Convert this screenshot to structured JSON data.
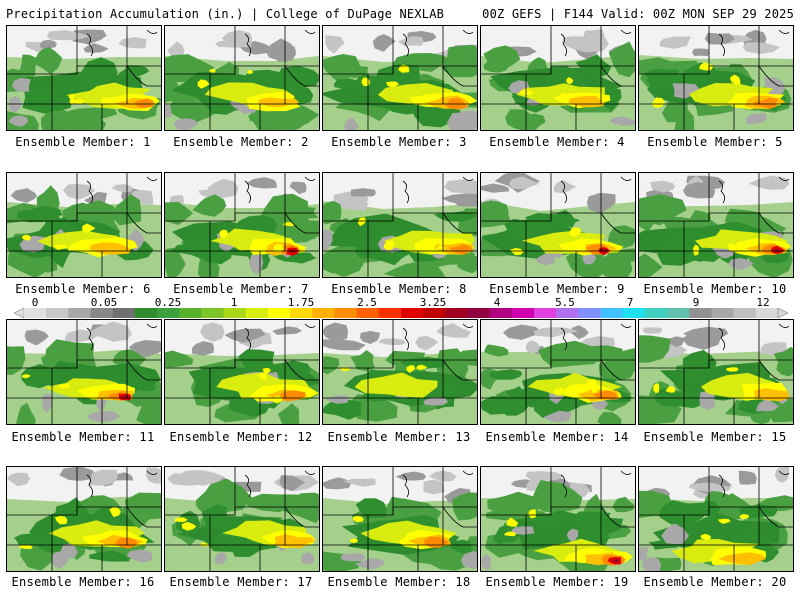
{
  "header": {
    "title": "Precipitation Accumulation (in.) | College of DuPage NEXLAB",
    "valid": "00Z GEFS | F144 Valid: 00Z MON SEP 29 2025"
  },
  "panels": [
    {
      "label": "Ensemble Member: 1",
      "intensity": 3
    },
    {
      "label": "Ensemble Member: 2",
      "intensity": 2
    },
    {
      "label": "Ensemble Member: 3",
      "intensity": 3
    },
    {
      "label": "Ensemble Member: 4",
      "intensity": 2
    },
    {
      "label": "Ensemble Member: 5",
      "intensity": 3
    },
    {
      "label": "Ensemble Member: 6",
      "intensity": 2
    },
    {
      "label": "Ensemble Member: 7",
      "intensity": 4
    },
    {
      "label": "Ensemble Member: 8",
      "intensity": 3
    },
    {
      "label": "Ensemble Member: 9",
      "intensity": 4
    },
    {
      "label": "Ensemble Member: 10",
      "intensity": 4
    },
    {
      "label": "Ensemble Member: 11",
      "intensity": 4
    },
    {
      "label": "Ensemble Member: 12",
      "intensity": 3
    },
    {
      "label": "Ensemble Member: 13",
      "intensity": 1
    },
    {
      "label": "Ensemble Member: 14",
      "intensity": 3
    },
    {
      "label": "Ensemble Member: 15",
      "intensity": 2
    },
    {
      "label": "Ensemble Member: 16",
      "intensity": 3
    },
    {
      "label": "Ensemble Member: 17",
      "intensity": 2
    },
    {
      "label": "Ensemble Member: 18",
      "intensity": 3
    },
    {
      "label": "Ensemble Member: 19",
      "intensity": 4
    },
    {
      "label": "Ensemble Member: 20",
      "intensity": 2
    }
  ],
  "colorbar": {
    "labels": [
      "0",
      "0.05",
      "0.25",
      "1",
      "1.75",
      "2.5",
      "3.25",
      "4",
      "5.5",
      "7",
      "9",
      "12"
    ],
    "colors": [
      "#e0e0e0",
      "#c8c8c8",
      "#a8a8a8",
      "#888888",
      "#707070",
      "#2e8b2e",
      "#3ca03c",
      "#58b02c",
      "#7cc428",
      "#a8d818",
      "#d8ec10",
      "#ffff00",
      "#ffd800",
      "#ffb000",
      "#ff8c00",
      "#ff6000",
      "#ff3000",
      "#e00000",
      "#c00000",
      "#a00020",
      "#900040",
      "#b00080",
      "#d000b0",
      "#e040e0",
      "#b070f0",
      "#8090ff",
      "#40c0ff",
      "#20e0f0",
      "#40d0c0",
      "#60c0b0",
      "#909090",
      "#a8a8a8",
      "#c0c0c0",
      "#d8d8d8"
    ]
  }
}
